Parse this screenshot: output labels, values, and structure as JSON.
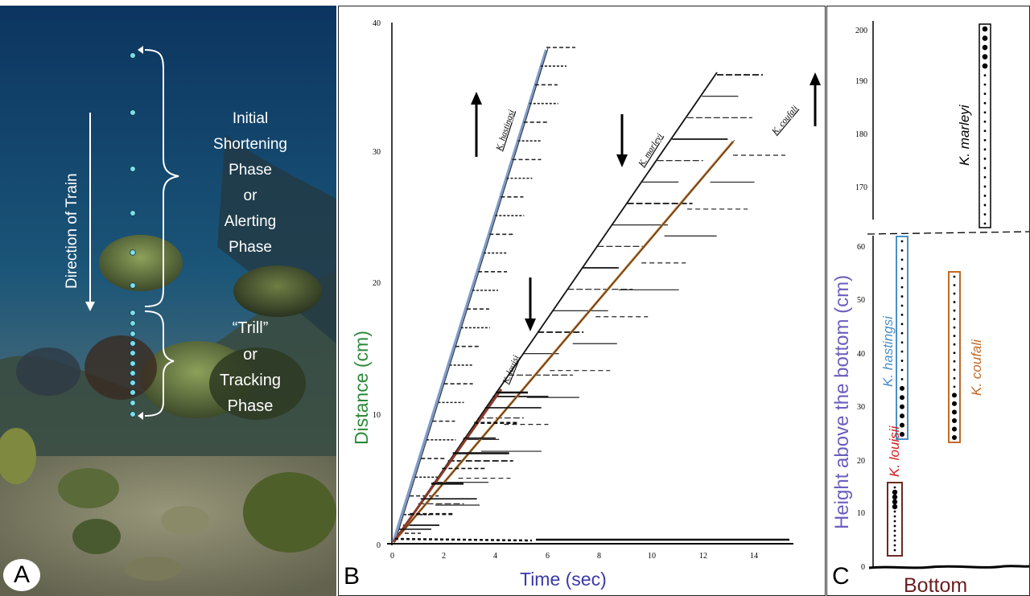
{
  "panel_a": {
    "letter": "A",
    "direction_label": "Direction of Train",
    "phase1": [
      "Initial",
      "Shortening",
      "Phase",
      "or",
      "Alerting",
      "Phase"
    ],
    "phase2": [
      "“Trill”",
      "or",
      "Tracking",
      "Phase"
    ],
    "colors": {
      "water_top": "#0d3a66",
      "water_bottom": "#6f8c9a",
      "dot": "#7fdde6",
      "text": "#ffffff"
    }
  },
  "panel_b": {
    "letter": "B",
    "xlabel": "Time (sec)",
    "ylabel": "Distance (cm)",
    "x_ticks": [
      "0",
      "2",
      "4",
      "6",
      "8",
      "10",
      "12",
      "14"
    ],
    "y_ticks": [
      "0",
      "10",
      "20",
      "30",
      "40"
    ],
    "species": {
      "hastingsi": "K. hastingsi",
      "louisi": "K. louisi",
      "marleyi": "K. marleyi",
      "coufali": "K. coufali"
    },
    "colors": {
      "xlabel": "#3a3aa8",
      "ylabel": "#2a8a3a",
      "hastingsi": "#7f9cc8",
      "louisi": "#8a3a2a",
      "coufali": "#c07830",
      "marleyi": "#111111"
    }
  },
  "panel_c": {
    "letter": "C",
    "ylabel": "Height above the bottom (cm)",
    "bottom_label": "Bottom",
    "upper_ticks": [
      "170",
      "180",
      "190",
      "200"
    ],
    "lower_ticks": [
      "0",
      "10",
      "20",
      "30",
      "40",
      "50",
      "60"
    ],
    "species": {
      "marleyi": "K. marleyi",
      "hastingsi": "K. hastingsi",
      "coufali": "K. coufali",
      "louisii": "K. louisii"
    },
    "colors": {
      "ylabel": "#6a5fbf",
      "bottom": "#6b1f1f",
      "marleyi": "#000000",
      "hastingsi": "#4a90c8",
      "coufali": "#c06a28",
      "louisii": "#d42020"
    }
  }
}
